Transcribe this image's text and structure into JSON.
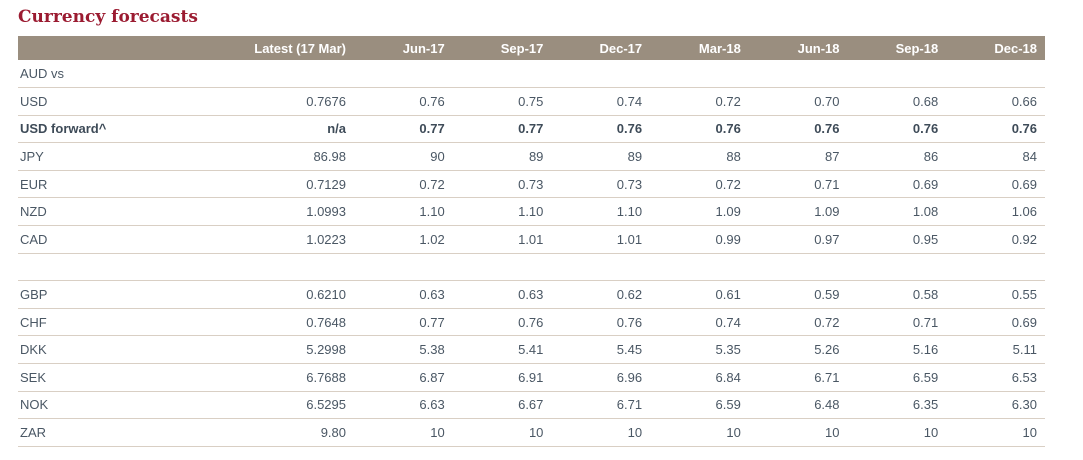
{
  "title": "Currency forecasts",
  "colors": {
    "title_red": "#9B1B31",
    "header_background": "#9A8E7F",
    "header_text": "#FFFFFF",
    "body_text": "#4A5764",
    "bold_text": "#3E4B58",
    "row_divider": "#D9CFC4"
  },
  "table": {
    "columns": [
      "",
      "Latest (17 Mar)",
      "Jun-17",
      "Sep-17",
      "Dec-17",
      "Mar-18",
      "Jun-18",
      "Sep-18",
      "Dec-18"
    ],
    "rows": [
      {
        "label": "AUD vs",
        "type": "section",
        "bold": false,
        "values": [
          "",
          "",
          "",
          "",
          "",
          "",
          "",
          ""
        ]
      },
      {
        "label": "USD",
        "type": "data",
        "bold": false,
        "values": [
          "0.7676",
          "0.76",
          "0.75",
          "0.74",
          "0.72",
          "0.70",
          "0.68",
          "0.66"
        ]
      },
      {
        "label": "USD forward^",
        "type": "data",
        "bold": true,
        "values": [
          "n/a",
          "0.77",
          "0.77",
          "0.76",
          "0.76",
          "0.76",
          "0.76",
          "0.76"
        ]
      },
      {
        "label": "JPY",
        "type": "data",
        "bold": false,
        "values": [
          "86.98",
          "90",
          "89",
          "89",
          "88",
          "87",
          "86",
          "84"
        ]
      },
      {
        "label": "EUR",
        "type": "data",
        "bold": false,
        "values": [
          "0.7129",
          "0.72",
          "0.73",
          "0.73",
          "0.72",
          "0.71",
          "0.69",
          "0.69"
        ]
      },
      {
        "label": "NZD",
        "type": "data",
        "bold": false,
        "values": [
          "1.0993",
          "1.10",
          "1.10",
          "1.10",
          "1.09",
          "1.09",
          "1.08",
          "1.06"
        ]
      },
      {
        "label": "CAD",
        "type": "data",
        "bold": false,
        "values": [
          "1.0223",
          "1.02",
          "1.01",
          "1.01",
          "0.99",
          "0.97",
          "0.95",
          "0.92"
        ]
      },
      {
        "label": "",
        "type": "spacer",
        "bold": false,
        "values": [
          "",
          "",
          "",
          "",
          "",
          "",
          "",
          ""
        ]
      },
      {
        "label": "GBP",
        "type": "data",
        "bold": false,
        "values": [
          "0.6210",
          "0.63",
          "0.63",
          "0.62",
          "0.61",
          "0.59",
          "0.58",
          "0.55"
        ]
      },
      {
        "label": "CHF",
        "type": "data",
        "bold": false,
        "values": [
          "0.7648",
          "0.77",
          "0.76",
          "0.76",
          "0.74",
          "0.72",
          "0.71",
          "0.69"
        ]
      },
      {
        "label": "DKK",
        "type": "data",
        "bold": false,
        "values": [
          "5.2998",
          "5.38",
          "5.41",
          "5.45",
          "5.35",
          "5.26",
          "5.16",
          "5.11"
        ]
      },
      {
        "label": "SEK",
        "type": "data",
        "bold": false,
        "values": [
          "6.7688",
          "6.87",
          "6.91",
          "6.96",
          "6.84",
          "6.71",
          "6.59",
          "6.53"
        ]
      },
      {
        "label": "NOK",
        "type": "data",
        "bold": false,
        "values": [
          "6.5295",
          "6.63",
          "6.67",
          "6.71",
          "6.59",
          "6.48",
          "6.35",
          "6.30"
        ]
      },
      {
        "label": "ZAR",
        "type": "data",
        "bold": false,
        "values": [
          "9.80",
          "10",
          "10",
          "10",
          "10",
          "10",
          "10",
          "10"
        ]
      }
    ]
  }
}
